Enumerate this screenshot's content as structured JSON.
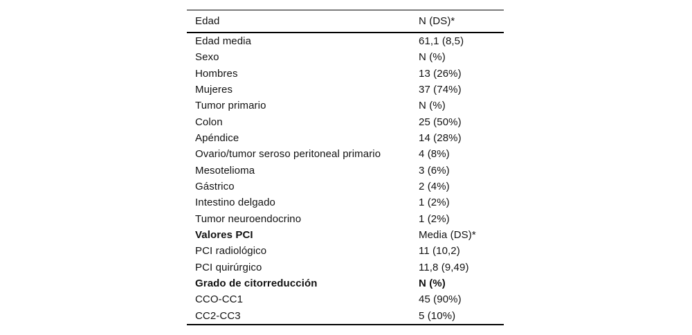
{
  "table": {
    "header": {
      "label": "Edad",
      "value": "N (DS)*"
    },
    "rows": [
      {
        "label": "Edad media",
        "value": "61,1 (8,5)",
        "bold_label": false,
        "bold_value": false
      },
      {
        "label": "Sexo",
        "value": "N (%)",
        "bold_label": false,
        "bold_value": false
      },
      {
        "label": "Hombres",
        "value": "13 (26%)",
        "bold_label": false,
        "bold_value": false
      },
      {
        "label": "Mujeres",
        "value": "37 (74%)",
        "bold_label": false,
        "bold_value": false
      },
      {
        "label": "Tumor primario",
        "value": "N (%)",
        "bold_label": false,
        "bold_value": false
      },
      {
        "label": "Colon",
        "value": "25 (50%)",
        "bold_label": false,
        "bold_value": false
      },
      {
        "label": "Apéndice",
        "value": "14 (28%)",
        "bold_label": false,
        "bold_value": false
      },
      {
        "label": "Ovario/tumor seroso peritoneal primario",
        "value": "4 (8%)",
        "bold_label": false,
        "bold_value": false
      },
      {
        "label": "Mesotelioma",
        "value": "3 (6%)",
        "bold_label": false,
        "bold_value": false
      },
      {
        "label": "Gástrico",
        "value": "2 (4%)",
        "bold_label": false,
        "bold_value": false
      },
      {
        "label": "Intestino delgado",
        "value": "1 (2%)",
        "bold_label": false,
        "bold_value": false
      },
      {
        "label": "Tumor neuroendocrino",
        "value": "1 (2%)",
        "bold_label": false,
        "bold_value": false
      },
      {
        "label": "Valores PCI",
        "value": "Media (DS)*",
        "bold_label": true,
        "bold_value": false
      },
      {
        "label": "PCI radiológico",
        "value": "11 (10,2)",
        "bold_label": false,
        "bold_value": false
      },
      {
        "label": "PCI quirúrgico",
        "value": "11,8 (9,49)",
        "bold_label": false,
        "bold_value": false
      },
      {
        "label": "Grado de citorreducción",
        "value": "N (%)",
        "bold_label": true,
        "bold_value": true
      },
      {
        "label": "CCO-CC1",
        "value": "45 (90%)",
        "bold_label": false,
        "bold_value": false
      },
      {
        "label": "CC2-CC3",
        "value": "5 (10%)",
        "bold_label": false,
        "bold_value": false
      }
    ]
  },
  "colors": {
    "background": "#ffffff",
    "text": "#111111",
    "rule": "#000000"
  }
}
